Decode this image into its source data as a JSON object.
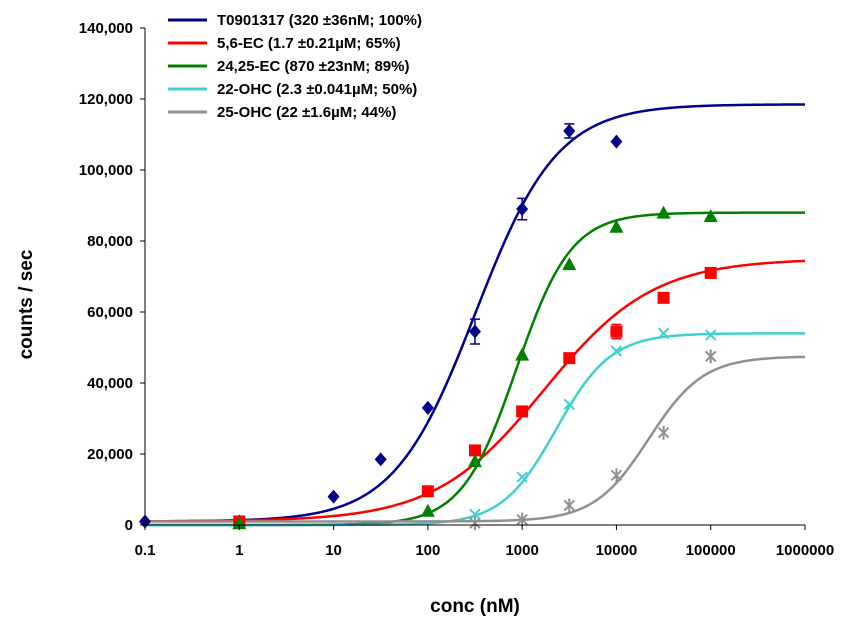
{
  "chart_data": {
    "type": "scatter",
    "xlabel": "conc (nM)",
    "ylabel": "counts / sec",
    "x_scale": "log",
    "xlim": [
      0.1,
      1000000
    ],
    "ylim": [
      0,
      140000
    ],
    "x_tick_labels": [
      "0.1",
      "1",
      "10",
      "100",
      "1000",
      "10000",
      "100000",
      "1000000"
    ],
    "y_tick_labels": [
      "0",
      "20,000",
      "40,000",
      "60,000",
      "80,000",
      "100,000",
      "120,000",
      "140,000"
    ],
    "grid": false,
    "legend_position": "top-left",
    "series": [
      {
        "name": "T0901317 (320 ±36nM; 100%)",
        "color": "#00008b",
        "marker": "diamond",
        "fit": {
          "bottom": 1000,
          "top": 118500,
          "ec50": 320,
          "hill": 1.0
        },
        "points": [
          {
            "x": 0.1,
            "y": 1000,
            "err": 0
          },
          {
            "x": 1,
            "y": 1000,
            "err": 0
          },
          {
            "x": 10,
            "y": 8000,
            "err": 0
          },
          {
            "x": 31.6,
            "y": 18500,
            "err": 0
          },
          {
            "x": 100,
            "y": 33000,
            "err": 0
          },
          {
            "x": 316,
            "y": 54500,
            "err": 3500
          },
          {
            "x": 1000,
            "y": 89000,
            "err": 3000
          },
          {
            "x": 3162,
            "y": 111000,
            "err": 2000
          },
          {
            "x": 10000,
            "y": 108000,
            "err": 0
          }
        ]
      },
      {
        "name": "5,6-EC (1.7 ±0.21µM; 65%)",
        "color": "#ff0000",
        "marker": "square",
        "fit": {
          "bottom": 1000,
          "top": 75000,
          "ec50": 1700,
          "hill": 0.75
        },
        "points": [
          {
            "x": 1,
            "y": 1000,
            "err": 0
          },
          {
            "x": 100,
            "y": 9500,
            "err": 0
          },
          {
            "x": 316,
            "y": 21000,
            "err": 0
          },
          {
            "x": 1000,
            "y": 32000,
            "err": 0
          },
          {
            "x": 3162,
            "y": 47000,
            "err": 0
          },
          {
            "x": 10000,
            "y": 54500,
            "err": 2000
          },
          {
            "x": 31623,
            "y": 64000,
            "err": 0
          },
          {
            "x": 100000,
            "y": 71000,
            "err": 0
          }
        ]
      },
      {
        "name": "24,25-EC (870 ±23nM; 89%)",
        "color": "#008000",
        "marker": "triangle",
        "fit": {
          "bottom": 0,
          "top": 88000,
          "ec50": 870,
          "hill": 1.5
        },
        "points": [
          {
            "x": 1,
            "y": 500,
            "err": 0
          },
          {
            "x": 100,
            "y": 4000,
            "err": 0
          },
          {
            "x": 316,
            "y": 18000,
            "err": 0
          },
          {
            "x": 1000,
            "y": 48000,
            "err": 0
          },
          {
            "x": 3162,
            "y": 73500,
            "err": 0
          },
          {
            "x": 10000,
            "y": 84000,
            "err": 0
          },
          {
            "x": 31623,
            "y": 88000,
            "err": 0
          },
          {
            "x": 100000,
            "y": 87000,
            "err": 0
          }
        ]
      },
      {
        "name": "22-OHC (2.3 ±0.041µM; 50%)",
        "color": "#40d0d0",
        "marker": "x",
        "fit": {
          "bottom": 0,
          "top": 54000,
          "ec50": 2300,
          "hill": 1.5
        },
        "points": [
          {
            "x": 316,
            "y": 3000,
            "err": 0
          },
          {
            "x": 1000,
            "y": 13500,
            "err": 0
          },
          {
            "x": 3162,
            "y": 34000,
            "err": 0
          },
          {
            "x": 10000,
            "y": 49000,
            "err": 0
          },
          {
            "x": 31623,
            "y": 54000,
            "err": 0
          },
          {
            "x": 100000,
            "y": 53500,
            "err": 0
          }
        ]
      },
      {
        "name": "25-OHC (22 ±1.6µM; 44%)",
        "color": "#909090",
        "marker": "star",
        "fit": {
          "bottom": 1000,
          "top": 47500,
          "ec50": 22000,
          "hill": 1.5
        },
        "points": [
          {
            "x": 316,
            "y": 500,
            "err": 0
          },
          {
            "x": 1000,
            "y": 1500,
            "err": 0
          },
          {
            "x": 3162,
            "y": 5500,
            "err": 0
          },
          {
            "x": 10000,
            "y": 14000,
            "err": 0
          },
          {
            "x": 31623,
            "y": 26000,
            "err": 0
          },
          {
            "x": 100000,
            "y": 47500,
            "err": 0
          }
        ]
      }
    ]
  }
}
